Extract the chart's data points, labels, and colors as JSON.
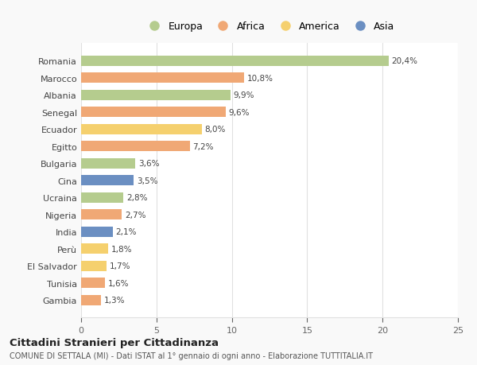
{
  "countries": [
    "Romania",
    "Marocco",
    "Albania",
    "Senegal",
    "Ecuador",
    "Egitto",
    "Bulgaria",
    "Cina",
    "Ucraina",
    "Nigeria",
    "India",
    "Perù",
    "El Salvador",
    "Tunisia",
    "Gambia"
  ],
  "values": [
    20.4,
    10.8,
    9.9,
    9.6,
    8.0,
    7.2,
    3.6,
    3.5,
    2.8,
    2.7,
    2.1,
    1.8,
    1.7,
    1.6,
    1.3
  ],
  "labels": [
    "20,4%",
    "10,8%",
    "9,9%",
    "9,6%",
    "8,0%",
    "7,2%",
    "3,6%",
    "3,5%",
    "2,8%",
    "2,7%",
    "2,1%",
    "1,8%",
    "1,7%",
    "1,6%",
    "1,3%"
  ],
  "continents": [
    "Europa",
    "Africa",
    "Europa",
    "Africa",
    "America",
    "Africa",
    "Europa",
    "Asia",
    "Europa",
    "Africa",
    "Asia",
    "America",
    "America",
    "Africa",
    "Africa"
  ],
  "continent_colors": {
    "Europa": "#b5cc8e",
    "Africa": "#f0a875",
    "America": "#f5d06e",
    "Asia": "#6b8fc2"
  },
  "legend_order": [
    "Europa",
    "Africa",
    "America",
    "Asia"
  ],
  "title": "Cittadini Stranieri per Cittadinanza",
  "subtitle": "COMUNE DI SETTALA (MI) - Dati ISTAT al 1° gennaio di ogni anno - Elaborazione TUTTITALIA.IT",
  "xlim": [
    0,
    25
  ],
  "xticks": [
    0,
    5,
    10,
    15,
    20,
    25
  ],
  "background_color": "#f9f9f9",
  "bar_background": "#ffffff",
  "grid_color": "#e0e0e0"
}
